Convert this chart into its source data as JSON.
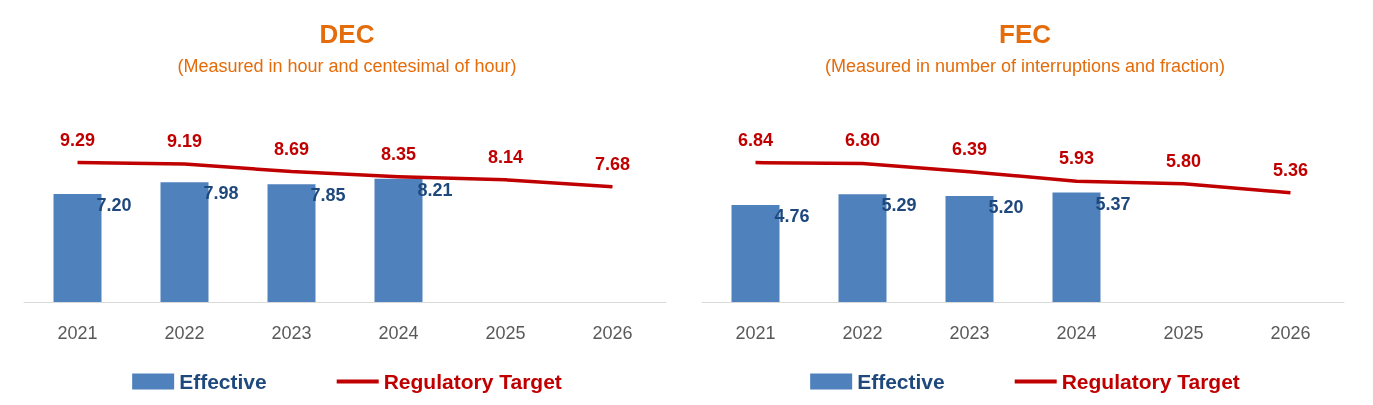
{
  "chart_data": [
    {
      "type": "bar",
      "title": "DEC",
      "subtitle": "(Measured in hour and centesimal of hour)",
      "categories": [
        "2021",
        "2022",
        "2023",
        "2024",
        "2025",
        "2026"
      ],
      "series": [
        {
          "name": "Effective",
          "color": "#4f81bd",
          "values": [
            7.2,
            7.98,
            7.85,
            8.21,
            null,
            null
          ],
          "value_labels": [
            "7.20",
            "7.98",
            "7.85",
            "8.21",
            null,
            null
          ]
        },
        {
          "name": "Regulatory Target",
          "type": "line",
          "color": "#c00000",
          "values": [
            9.29,
            9.19,
            8.69,
            8.35,
            8.14,
            7.68
          ],
          "value_labels": [
            "9.29",
            "9.19",
            "8.69",
            "8.35",
            "8.14",
            "7.68"
          ]
        }
      ],
      "legend": "bottom",
      "grid": false,
      "marker": "none",
      "tick_labels": "x"
    },
    {
      "type": "bar",
      "title": "FEC",
      "subtitle": "(Measured in number of interruptions and fraction)",
      "categories": [
        "2021",
        "2022",
        "2023",
        "2024",
        "2025",
        "2026"
      ],
      "series": [
        {
          "name": "Effective",
          "color": "#4f81bd",
          "values": [
            4.76,
            5.29,
            5.2,
            5.37,
            null,
            null
          ],
          "value_labels": [
            "4.76",
            "5.29",
            "5.20",
            "5.37",
            null,
            null
          ]
        },
        {
          "name": "Regulatory Target",
          "type": "line",
          "color": "#c00000",
          "values": [
            6.84,
            6.8,
            6.39,
            5.93,
            5.8,
            5.36
          ],
          "value_labels": [
            "6.84",
            "6.80",
            "6.39",
            "5.93",
            "5.80",
            "5.36"
          ]
        }
      ],
      "legend": "bottom",
      "grid": false,
      "marker": "none",
      "tick_labels": "x"
    }
  ]
}
